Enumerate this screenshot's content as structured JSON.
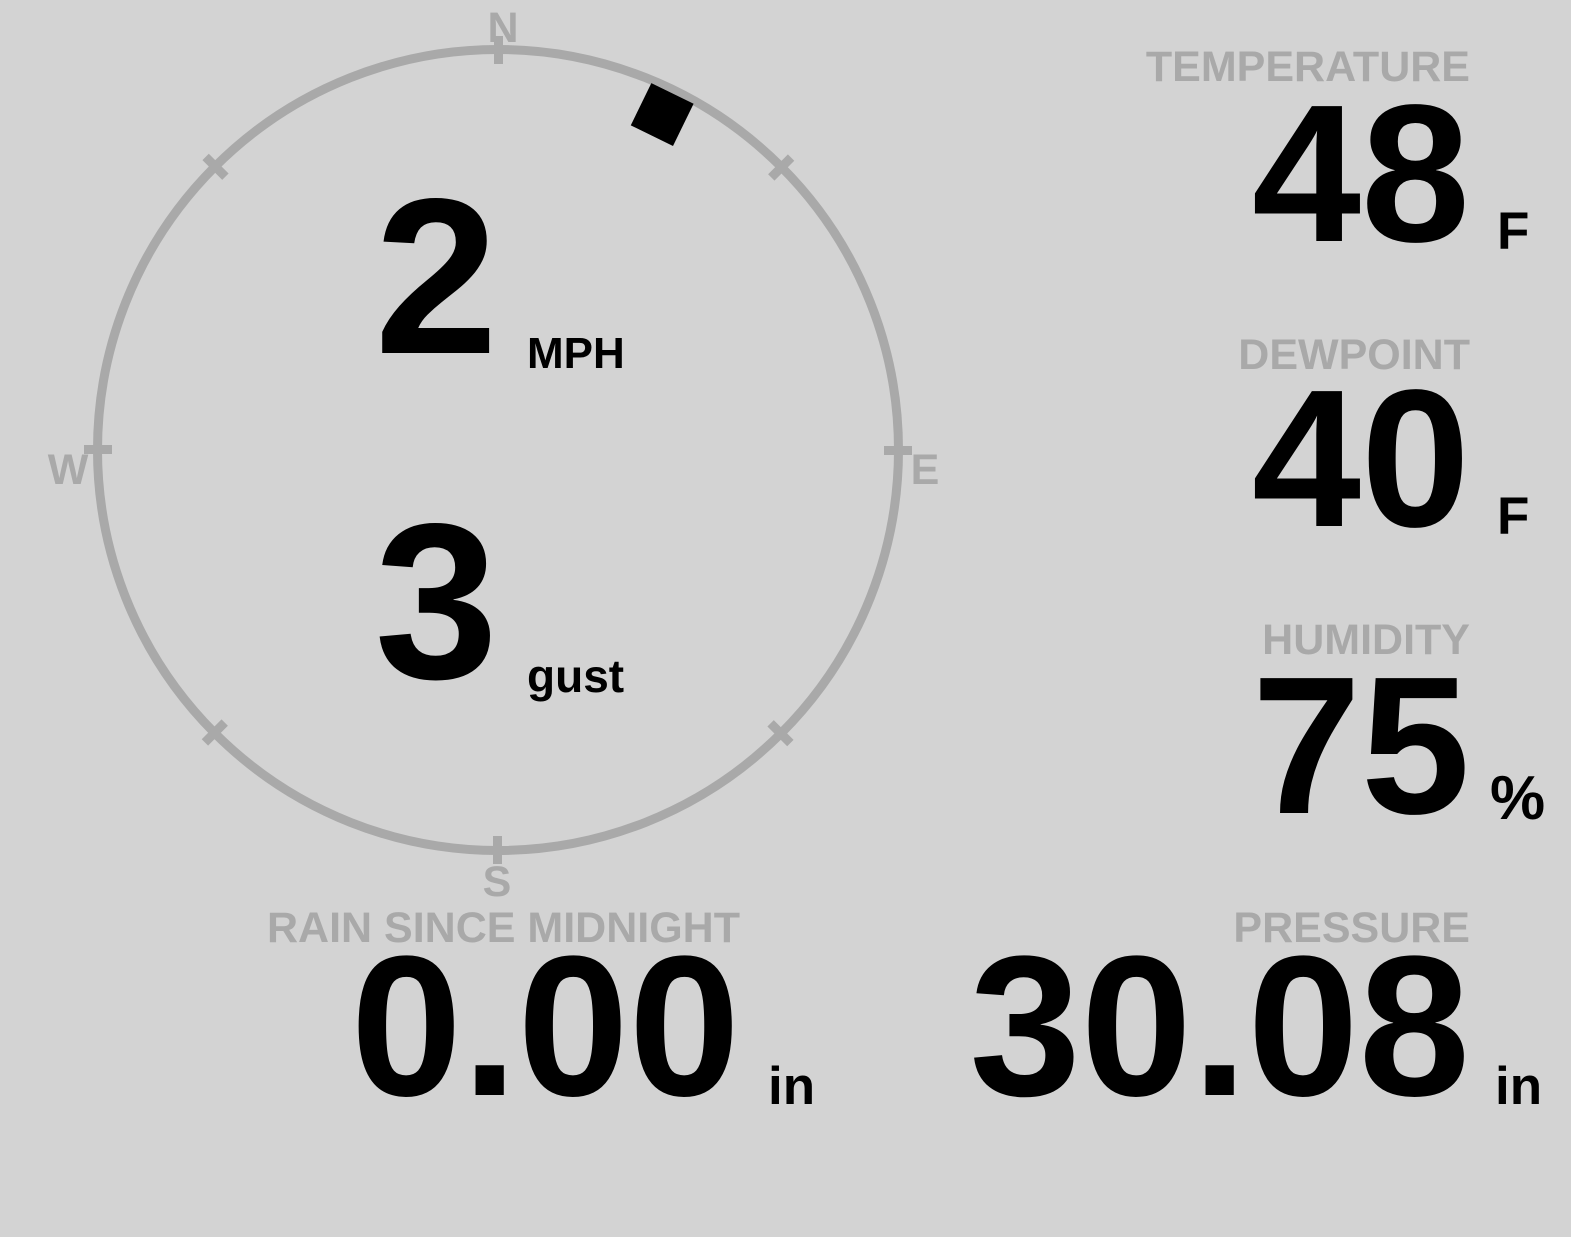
{
  "colors": {
    "background": "#d3d3d3",
    "label_gray": "#a9a9a9",
    "value_black": "#000000",
    "compass_ring": "#a9a9a9",
    "direction_marker": "#000000"
  },
  "compass": {
    "cardinals": {
      "north": "N",
      "east": "E",
      "south": "S",
      "west": "W"
    },
    "wind_speed_value": "2",
    "wind_speed_unit": "MPH",
    "wind_gust_value": "3",
    "wind_gust_unit": "gust",
    "wind_direction_degrees": 26
  },
  "stats": {
    "temperature": {
      "label": "TEMPERATURE",
      "value": "48",
      "unit": "F"
    },
    "dewpoint": {
      "label": "DEWPOINT",
      "value": "40",
      "unit": "F"
    },
    "humidity": {
      "label": "HUMIDITY",
      "value": "75",
      "unit": "%"
    },
    "rain_since_midnight": {
      "label": "RAIN SINCE MIDNIGHT",
      "value": "0.00",
      "unit": "in"
    },
    "pressure": {
      "label": "PRESSURE",
      "value": "30.08",
      "unit": "in"
    }
  }
}
